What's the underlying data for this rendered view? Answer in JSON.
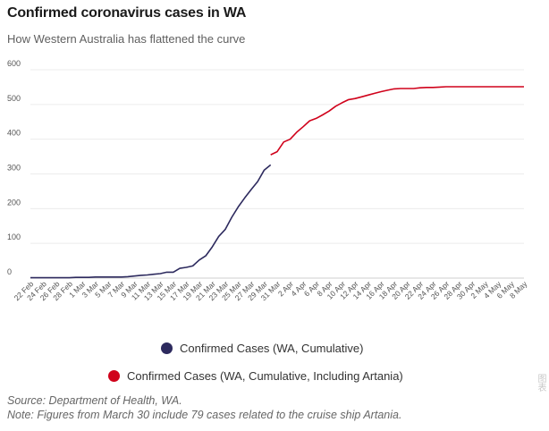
{
  "header": {
    "title": "Confirmed coronavirus cases in WA",
    "subtitle": "How Western Australia has flattened the curve"
  },
  "legend": [
    {
      "label": "Confirmed Cases (WA, Cumulative)",
      "color": "#2d2a5e"
    },
    {
      "label": "Confirmed Cases (WA, Cumulative, Including Artania)",
      "color": "#d0021b"
    }
  ],
  "footer": {
    "source": "Source: Department of Health, WA.",
    "note": "Note: Figures from March 30 include 79 cases related to the cruise ship Artania.",
    "credit": "图表"
  },
  "chart_data": {
    "type": "line",
    "title": "Confirmed coronavirus cases in WA",
    "subtitle": "How Western Australia has flattened the curve",
    "ylim": [
      0,
      600
    ],
    "yticks": [
      0,
      100,
      200,
      300,
      400,
      500,
      600
    ],
    "grid": true,
    "legend_position": "bottom",
    "x_tick_labels": [
      "22 Feb",
      "24 Feb",
      "26 Feb",
      "28 Feb",
      "1 Mar",
      "3 Mar",
      "5 Mar",
      "7 Mar",
      "9 Mar",
      "11 Mar",
      "13 Mar",
      "15 Mar",
      "17 Mar",
      "19 Mar",
      "21 Mar",
      "23 Mar",
      "25 Mar",
      "27 Mar",
      "29 Mar",
      "31 Mar",
      "2 Apr",
      "4 Apr",
      "6 Apr",
      "8 Apr",
      "10 Apr",
      "12 Apr",
      "14 Apr",
      "16 Apr",
      "18 Apr",
      "20 Apr",
      "22 Apr",
      "24 Apr",
      "26 Apr",
      "28 Apr",
      "30 Apr",
      "2 May",
      "4 May",
      "6 May",
      "8 May"
    ],
    "series": [
      {
        "name": "Confirmed Cases (WA, Cumulative)",
        "color": "#2d2a5e",
        "x": [
          "2020-02-22",
          "2020-02-23",
          "2020-02-24",
          "2020-02-25",
          "2020-02-26",
          "2020-02-27",
          "2020-02-28",
          "2020-02-29",
          "2020-03-01",
          "2020-03-02",
          "2020-03-03",
          "2020-03-04",
          "2020-03-05",
          "2020-03-06",
          "2020-03-07",
          "2020-03-08",
          "2020-03-09",
          "2020-03-10",
          "2020-03-11",
          "2020-03-12",
          "2020-03-13",
          "2020-03-14",
          "2020-03-15",
          "2020-03-16",
          "2020-03-17",
          "2020-03-18",
          "2020-03-19",
          "2020-03-20",
          "2020-03-21",
          "2020-03-22",
          "2020-03-23",
          "2020-03-24",
          "2020-03-25",
          "2020-03-26",
          "2020-03-27",
          "2020-03-28",
          "2020-03-29",
          "2020-03-30",
          "2020-03-31"
        ],
        "values": [
          1,
          1,
          1,
          1,
          1,
          1,
          1,
          2,
          2,
          2,
          3,
          3,
          3,
          3,
          3,
          4,
          6,
          8,
          9,
          11,
          13,
          17,
          17,
          28,
          31,
          35,
          52,
          64,
          90,
          120,
          140,
          175,
          205,
          231,
          255,
          278,
          311,
          326,
          null
        ]
      },
      {
        "name": "Confirmed Cases (WA, Cumulative, Including Artania)",
        "color": "#d0021b",
        "x": [
          "2020-03-30",
          "2020-03-31",
          "2020-04-01",
          "2020-04-02",
          "2020-04-03",
          "2020-04-04",
          "2020-04-05",
          "2020-04-06",
          "2020-04-07",
          "2020-04-08",
          "2020-04-09",
          "2020-04-10",
          "2020-04-11",
          "2020-04-12",
          "2020-04-13",
          "2020-04-14",
          "2020-04-15",
          "2020-04-16",
          "2020-04-17",
          "2020-04-18",
          "2020-04-19",
          "2020-04-20",
          "2020-04-21",
          "2020-04-22",
          "2020-04-23",
          "2020-04-24",
          "2020-04-25",
          "2020-04-26",
          "2020-04-27",
          "2020-04-28",
          "2020-04-29",
          "2020-04-30",
          "2020-05-01",
          "2020-05-02",
          "2020-05-03",
          "2020-05-04",
          "2020-05-05",
          "2020-05-06",
          "2020-05-07",
          "2020-05-08"
        ],
        "values": [
          355,
          364,
          392,
          400,
          420,
          436,
          453,
          460,
          470,
          481,
          495,
          505,
          514,
          517,
          522,
          527,
          532,
          537,
          541,
          545,
          546,
          546,
          546,
          548,
          549,
          549,
          550,
          551,
          551,
          551,
          551,
          551,
          551,
          551,
          551,
          551,
          551,
          551,
          551,
          551
        ]
      }
    ]
  }
}
